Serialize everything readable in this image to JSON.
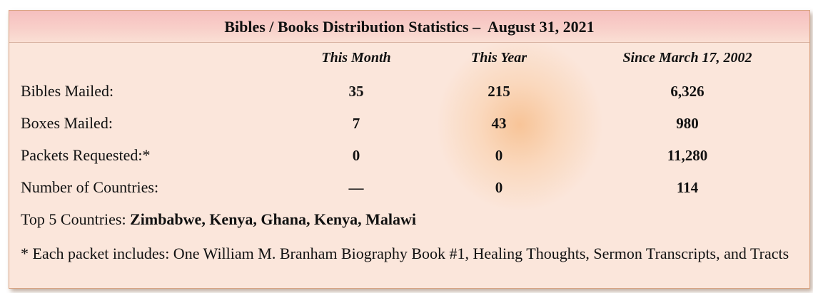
{
  "title": "Bibles / Books Distribution Statistics –  August 31, 2021",
  "columns": [
    "This Month",
    "This Year",
    "Since March 17, 2002"
  ],
  "rows": [
    {
      "label": "Bibles Mailed:",
      "month": "35",
      "year": "215",
      "since": "6,326"
    },
    {
      "label": "Boxes Mailed:",
      "month": "7",
      "year": "43",
      "since": "980"
    },
    {
      "label": "Packets Requested:*",
      "month": "0",
      "year": "0",
      "since": "11,280"
    },
    {
      "label": "Number of Countries:",
      "month": "—",
      "year": "0",
      "since": "114"
    }
  ],
  "top5": {
    "label": "Top 5 Countries: ",
    "countries": "Zimbabwe,  Kenya, Ghana, Kenya, Malawi"
  },
  "footnote": "* Each packet includes: One William  M. Branham Biography Book #1, Healing Thoughts, Sermon Transcripts, and Tracts"
}
